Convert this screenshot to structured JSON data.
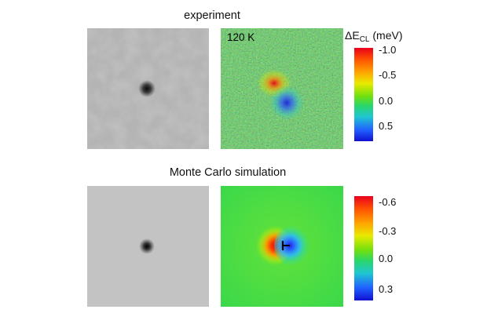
{
  "experiment": {
    "title": "experiment",
    "temperature_label": "120 K",
    "colorbar": {
      "label_delta": "ΔE",
      "label_sub": "CL",
      "label_unit": " (meV)",
      "ticks": [
        "-1.0",
        "-0.5",
        "0.0",
        "0.5"
      ]
    }
  },
  "simulation": {
    "title": "Monte Carlo simulation",
    "colorbar": {
      "ticks": [
        "-0.6",
        "-0.3",
        "0.0",
        "0.3"
      ]
    }
  },
  "colors": {
    "high_negative": "#e8001c",
    "zero": "#3ddc3a",
    "high_positive": "#1010cf",
    "gray_background": "#b9b9b9"
  }
}
